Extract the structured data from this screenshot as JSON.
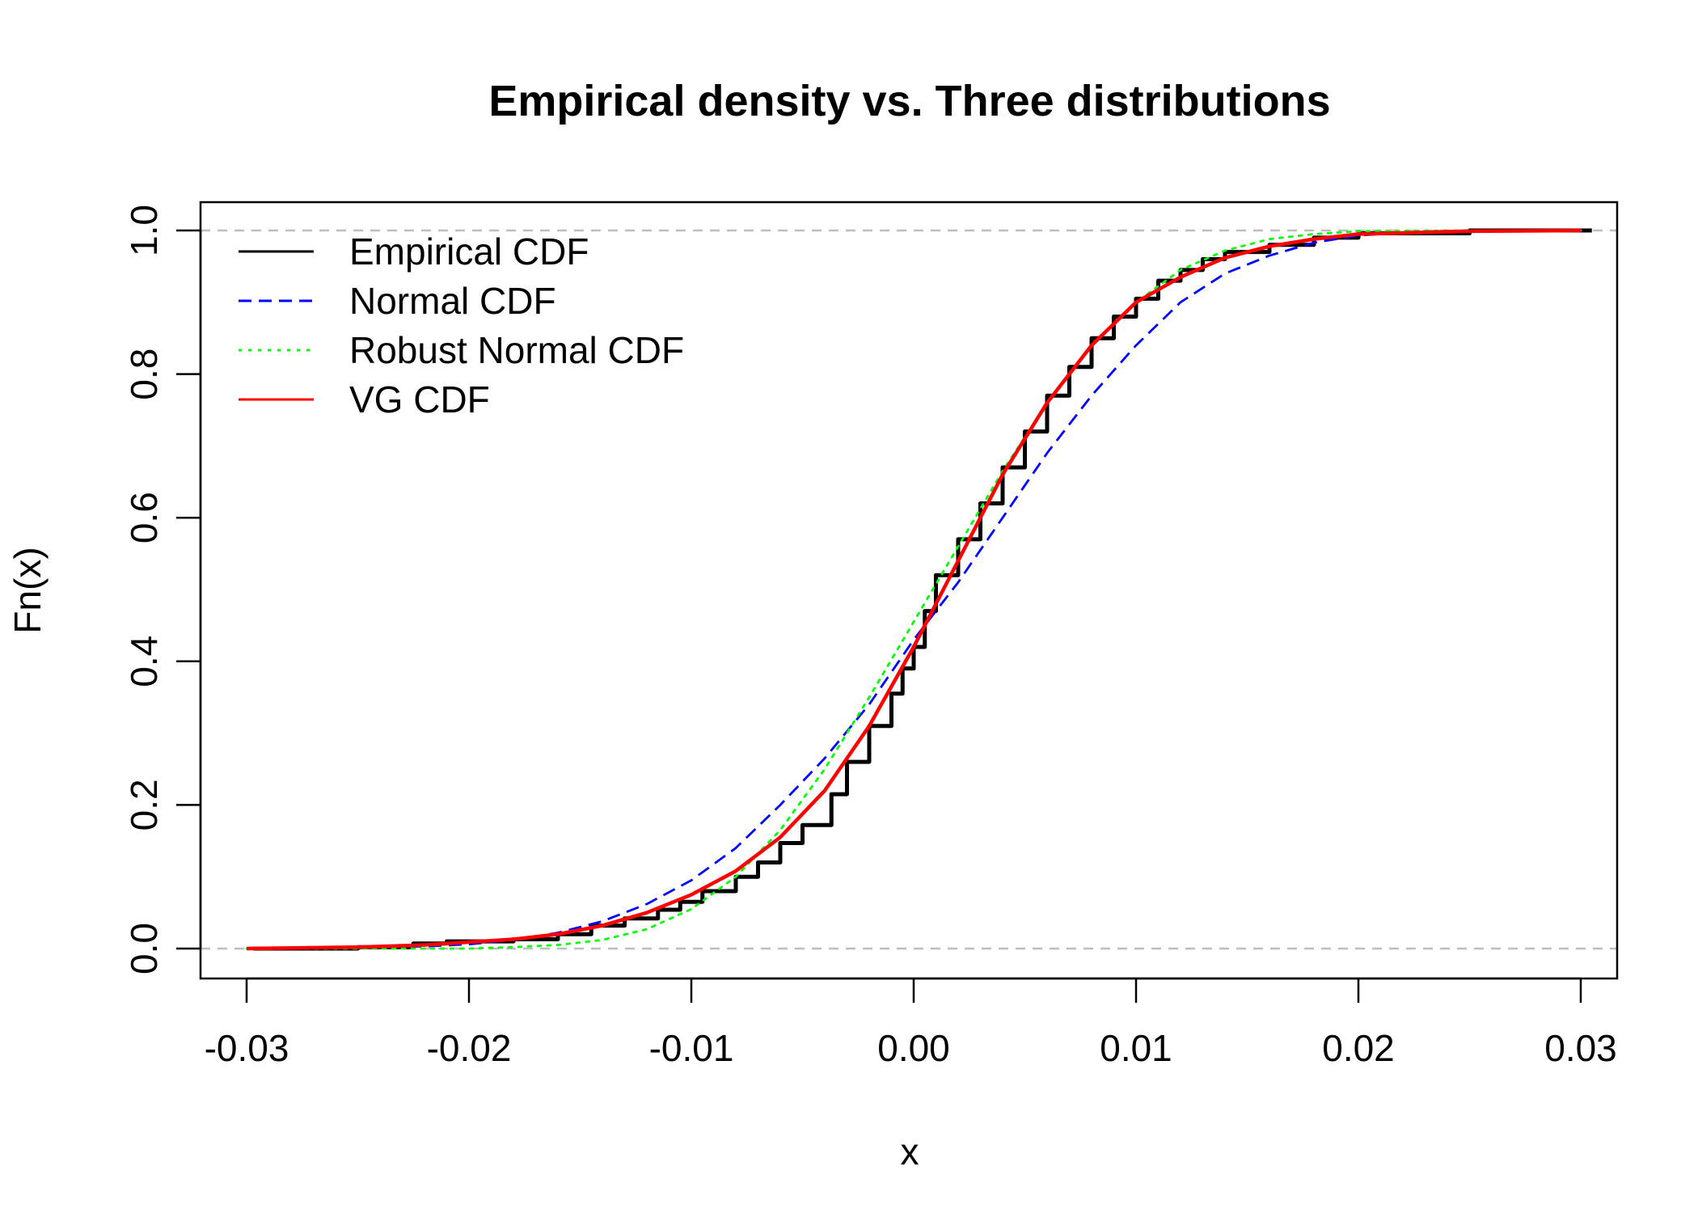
{
  "chart_data": {
    "type": "line",
    "title": "Empirical density vs. Three distributions",
    "xlabel": "x",
    "ylabel": "Fn(x)",
    "xlim": [
      -0.032,
      0.032
    ],
    "ylim": [
      0.0,
      1.0
    ],
    "x_ticks": [
      -0.03,
      -0.02,
      -0.01,
      0.0,
      0.01,
      0.02,
      0.03
    ],
    "x_tick_labels": [
      "-0.03",
      "-0.02",
      "-0.01",
      "0.00",
      "0.01",
      "0.02",
      "0.03"
    ],
    "y_ticks": [
      0.0,
      0.2,
      0.4,
      0.6,
      0.8,
      1.0
    ],
    "y_tick_labels": [
      "0.0",
      "0.2",
      "0.4",
      "0.6",
      "0.8",
      "1.0"
    ],
    "reference_lines": {
      "y": [
        0.0,
        1.0
      ],
      "color": "#bebebe",
      "style": "dashed"
    },
    "grid": false,
    "legend_position": "top-left",
    "series": [
      {
        "name": "Empirical CDF",
        "color": "#000000",
        "style": "solid",
        "step": true,
        "points": [
          [
            -0.0297,
            0.0
          ],
          [
            -0.025,
            0.002
          ],
          [
            -0.0225,
            0.007
          ],
          [
            -0.021,
            0.01
          ],
          [
            -0.018,
            0.013
          ],
          [
            -0.016,
            0.02
          ],
          [
            -0.0145,
            0.032
          ],
          [
            -0.013,
            0.042
          ],
          [
            -0.0115,
            0.054
          ],
          [
            -0.0105,
            0.065
          ],
          [
            -0.0095,
            0.08
          ],
          [
            -0.008,
            0.1
          ],
          [
            -0.007,
            0.12
          ],
          [
            -0.006,
            0.147
          ],
          [
            -0.005,
            0.172
          ],
          [
            -0.0037,
            0.215
          ],
          [
            -0.003,
            0.26
          ],
          [
            -0.002,
            0.31
          ],
          [
            -0.001,
            0.355
          ],
          [
            -0.0005,
            0.39
          ],
          [
            0.0,
            0.42
          ],
          [
            0.0005,
            0.47
          ],
          [
            0.001,
            0.52
          ],
          [
            0.002,
            0.57
          ],
          [
            0.003,
            0.62
          ],
          [
            0.004,
            0.67
          ],
          [
            0.005,
            0.72
          ],
          [
            0.006,
            0.77
          ],
          [
            0.007,
            0.81
          ],
          [
            0.008,
            0.85
          ],
          [
            0.009,
            0.88
          ],
          [
            0.01,
            0.905
          ],
          [
            0.011,
            0.93
          ],
          [
            0.012,
            0.945
          ],
          [
            0.013,
            0.96
          ],
          [
            0.014,
            0.97
          ],
          [
            0.016,
            0.98
          ],
          [
            0.018,
            0.99
          ],
          [
            0.02,
            0.996
          ],
          [
            0.025,
            1.0
          ],
          [
            0.0305,
            1.0
          ]
        ]
      },
      {
        "name": "Normal CDF",
        "color": "#0000ff",
        "style": "dashed",
        "step": false,
        "points": [
          [
            -0.03,
            0.0
          ],
          [
            -0.022,
            0.003
          ],
          [
            -0.02,
            0.006
          ],
          [
            -0.018,
            0.012
          ],
          [
            -0.016,
            0.022
          ],
          [
            -0.014,
            0.038
          ],
          [
            -0.012,
            0.062
          ],
          [
            -0.01,
            0.095
          ],
          [
            -0.008,
            0.14
          ],
          [
            -0.006,
            0.2
          ],
          [
            -0.004,
            0.265
          ],
          [
            -0.002,
            0.34
          ],
          [
            0.0,
            0.43
          ],
          [
            0.002,
            0.51
          ],
          [
            0.004,
            0.6
          ],
          [
            0.006,
            0.69
          ],
          [
            0.008,
            0.77
          ],
          [
            0.01,
            0.84
          ],
          [
            0.012,
            0.9
          ],
          [
            0.014,
            0.94
          ],
          [
            0.016,
            0.965
          ],
          [
            0.018,
            0.983
          ],
          [
            0.02,
            0.993
          ],
          [
            0.022,
            0.997
          ],
          [
            0.025,
            1.0
          ],
          [
            0.03,
            1.0
          ]
        ]
      },
      {
        "name": "Robust Normal CDF",
        "color": "#00ff00",
        "style": "dotted",
        "step": false,
        "points": [
          [
            -0.03,
            0.0
          ],
          [
            -0.02,
            0.0
          ],
          [
            -0.018,
            0.002
          ],
          [
            -0.016,
            0.005
          ],
          [
            -0.014,
            0.012
          ],
          [
            -0.012,
            0.027
          ],
          [
            -0.01,
            0.055
          ],
          [
            -0.008,
            0.1
          ],
          [
            -0.006,
            0.165
          ],
          [
            -0.004,
            0.25
          ],
          [
            -0.002,
            0.35
          ],
          [
            0.0,
            0.455
          ],
          [
            0.002,
            0.56
          ],
          [
            0.004,
            0.665
          ],
          [
            0.006,
            0.76
          ],
          [
            0.008,
            0.84
          ],
          [
            0.01,
            0.9
          ],
          [
            0.012,
            0.945
          ],
          [
            0.014,
            0.972
          ],
          [
            0.016,
            0.988
          ],
          [
            0.018,
            0.995
          ],
          [
            0.02,
            0.999
          ],
          [
            0.025,
            1.0
          ],
          [
            0.03,
            1.0
          ]
        ]
      },
      {
        "name": "VG CDF",
        "color": "#ff0000",
        "style": "solid",
        "step": false,
        "points": [
          [
            -0.03,
            0.0
          ],
          [
            -0.025,
            0.002
          ],
          [
            -0.022,
            0.005
          ],
          [
            -0.02,
            0.009
          ],
          [
            -0.018,
            0.013
          ],
          [
            -0.016,
            0.02
          ],
          [
            -0.014,
            0.032
          ],
          [
            -0.012,
            0.05
          ],
          [
            -0.01,
            0.075
          ],
          [
            -0.008,
            0.108
          ],
          [
            -0.006,
            0.155
          ],
          [
            -0.004,
            0.22
          ],
          [
            -0.002,
            0.31
          ],
          [
            0.0,
            0.42
          ],
          [
            0.002,
            0.54
          ],
          [
            0.004,
            0.66
          ],
          [
            0.006,
            0.76
          ],
          [
            0.008,
            0.84
          ],
          [
            0.01,
            0.9
          ],
          [
            0.012,
            0.935
          ],
          [
            0.014,
            0.962
          ],
          [
            0.016,
            0.978
          ],
          [
            0.018,
            0.988
          ],
          [
            0.02,
            0.995
          ],
          [
            0.025,
            0.999
          ],
          [
            0.03,
            1.0
          ]
        ]
      }
    ]
  }
}
